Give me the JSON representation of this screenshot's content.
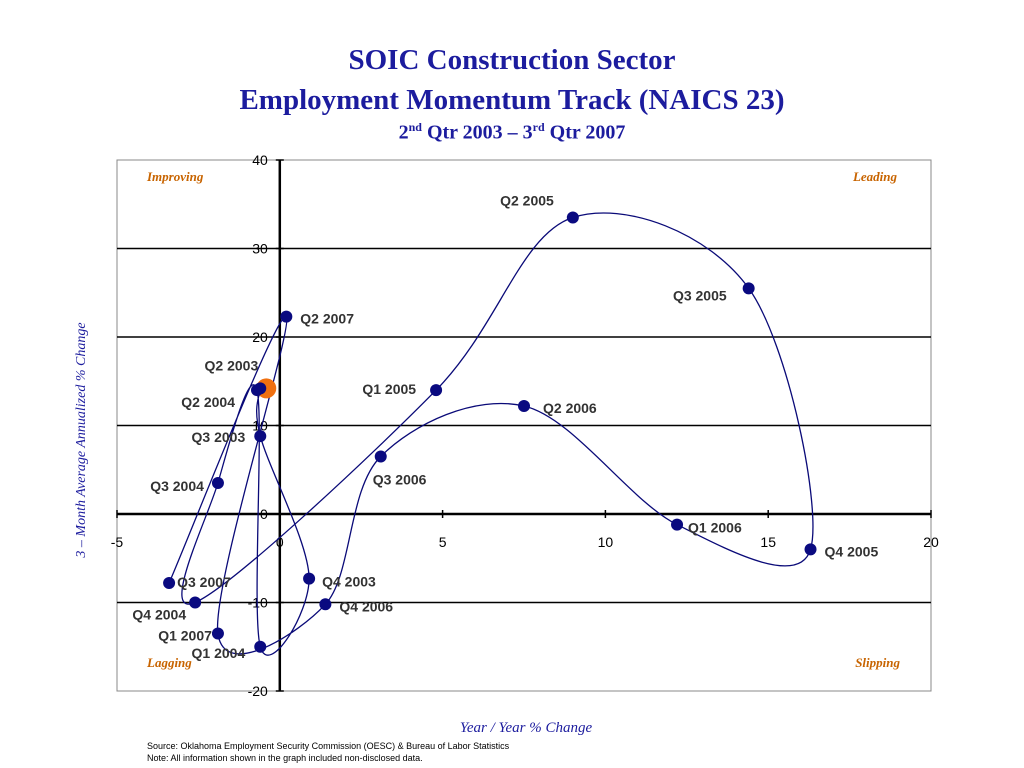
{
  "title_line1": "SOIC Construction Sector",
  "title_line2": "Employment Momentum Track (NAICS 23)",
  "subtitle": {
    "start_num": "2",
    "start_sup": "nd",
    "middle": " Qtr 2003 – 3",
    "end_sup": "rd",
    "end": " Qtr 2007"
  },
  "source_note": "Source:  Oklahoma Employment Security Commission (OESC) & Bureau of Labor Statistics",
  "disclosure_note": "Note: All information shown in the graph included non-disclosed data.",
  "chart_data": {
    "type": "scatter",
    "xlabel": "Year / Year % Change",
    "ylabel": "3 – Month Average Annualized % Change",
    "xlim": [
      -5,
      20
    ],
    "ylim": [
      -20,
      40
    ],
    "x_ticks": [
      "-5",
      "0",
      "5",
      "10",
      "15",
      "20"
    ],
    "y_ticks": [
      "40",
      "30",
      "20",
      "10",
      "0",
      "-10",
      "-20"
    ],
    "grid": "horizontal",
    "quadrants": {
      "top_left": "Improving",
      "top_right": "Leading",
      "bottom_left": "Lagging",
      "bottom_right": "Slipping"
    },
    "points": [
      {
        "label": "Q2 2003",
        "x": -0.6,
        "y": 14.2,
        "highlight": true
      },
      {
        "label": "Q3 2003",
        "x": -0.6,
        "y": 8.8
      },
      {
        "label": "Q4 2003",
        "x": 0.9,
        "y": -7.3
      },
      {
        "label": "Q1 2004",
        "x": -0.6,
        "y": -15.0
      },
      {
        "label": "Q2 2004",
        "x": -0.7,
        "y": 14.0
      },
      {
        "label": "Q3 2004",
        "x": -1.9,
        "y": 3.5
      },
      {
        "label": "Q4 2004",
        "x": -2.6,
        "y": -10.0
      },
      {
        "label": "Q1 2005",
        "x": 4.8,
        "y": 14.0
      },
      {
        "label": "Q2 2005",
        "x": 9.0,
        "y": 33.5
      },
      {
        "label": "Q3 2005",
        "x": 14.4,
        "y": 25.5
      },
      {
        "label": "Q4 2005",
        "x": 16.3,
        "y": -4.0
      },
      {
        "label": "Q1 2006",
        "x": 12.2,
        "y": -1.2
      },
      {
        "label": "Q2 2006",
        "x": 7.5,
        "y": 12.2
      },
      {
        "label": "Q3 2006",
        "x": 3.1,
        "y": 6.5
      },
      {
        "label": "Q4 2006",
        "x": 1.4,
        "y": -10.2
      },
      {
        "label": "Q1 2007",
        "x": -1.9,
        "y": -13.5
      },
      {
        "label": "Q2 2007",
        "x": 0.2,
        "y": 22.3
      },
      {
        "label": "Q3 2007",
        "x": -3.4,
        "y": -7.8
      }
    ]
  }
}
